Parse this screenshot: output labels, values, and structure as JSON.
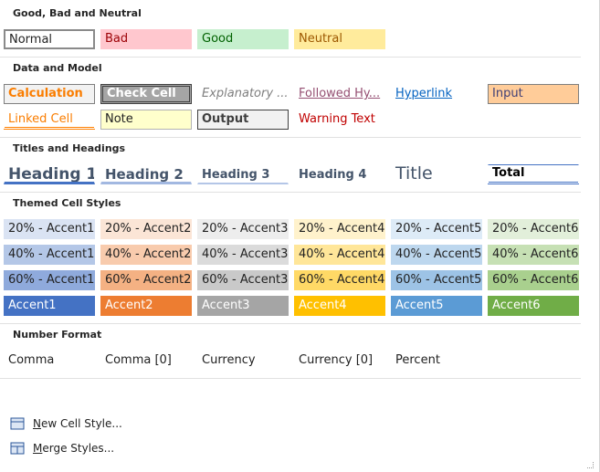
{
  "sections": [
    {
      "title": "Good, Bad and Neutral",
      "rows": [
        [
          "Normal",
          "Bad",
          "Good",
          "Neutral"
        ]
      ]
    },
    {
      "title": "Data and Model",
      "rows": [
        [
          "Calculation",
          "Check Cell",
          "Explanatory ...",
          "Followed Hy...",
          "Hyperlink",
          "Input"
        ],
        [
          "Linked Cell",
          "Note",
          "Output",
          "Warning Text"
        ]
      ]
    },
    {
      "title": "Titles and Headings",
      "rows": [
        [
          "Heading 1",
          "Heading 2",
          "Heading 3",
          "Heading 4",
          "Title",
          "Total"
        ]
      ]
    },
    {
      "title": "Themed Cell Styles",
      "rows": [
        [
          "20% - Accent1",
          "20% - Accent2",
          "20% - Accent3",
          "20% - Accent4",
          "20% - Accent5",
          "20% - Accent6"
        ],
        [
          "40% - Accent1",
          "40% - Accent2",
          "40% - Accent3",
          "40% - Accent4",
          "40% - Accent5",
          "40% - Accent6"
        ],
        [
          "60% - Accent1",
          "60% - Accent2",
          "60% - Accent3",
          "60% - Accent4",
          "60% - Accent5",
          "60% - Accent6"
        ],
        [
          "Accent1",
          "Accent2",
          "Accent3",
          "Accent4",
          "Accent5",
          "Accent6"
        ]
      ]
    },
    {
      "title": "Number Format",
      "rows": [
        [
          "Comma",
          "Comma [0]",
          "Currency",
          "Currency [0]",
          "Percent"
        ]
      ]
    }
  ],
  "menu": [
    "New Cell Style...",
    "Merge Styles..."
  ]
}
